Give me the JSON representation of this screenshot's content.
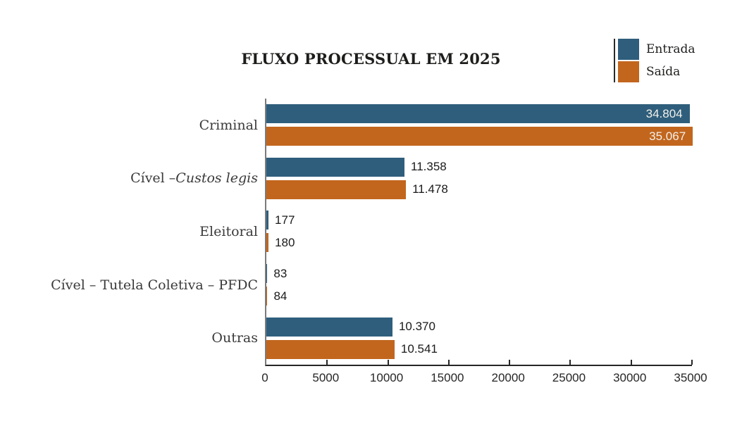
{
  "title": "FLUXO PROCESSUAL EM 2025",
  "legend": {
    "position": "top-right",
    "entries": [
      {
        "label": "Entrada",
        "color": "#2f5e7c"
      },
      {
        "label": "Saída",
        "color": "#c2661e"
      }
    ]
  },
  "chart_data": {
    "type": "bar",
    "orientation": "horizontal",
    "title": "FLUXO PROCESSUAL EM 2025",
    "xlabel": "",
    "ylabel": "",
    "xlim": [
      0,
      35000
    ],
    "grid": false,
    "legend_position": "top-right",
    "categories": [
      "Criminal",
      "Cível – Custos legis",
      "Eleitoral",
      "Cível – Tutela Coletiva – PFDC",
      "Outras"
    ],
    "category_segments": [
      [
        {
          "text": "Criminal",
          "italic": false
        }
      ],
      [
        {
          "text": "Cível – ",
          "italic": false
        },
        {
          "text": "Custos legis",
          "italic": true
        }
      ],
      [
        {
          "text": "Eleitoral",
          "italic": false
        }
      ],
      [
        {
          "text": "Cível – Tutela Coletiva – PFDC",
          "italic": false
        }
      ],
      [
        {
          "text": "Outras",
          "italic": false
        }
      ]
    ],
    "series": [
      {
        "name": "Entrada",
        "color": "#2f5e7c",
        "values": [
          34804,
          11358,
          177,
          83,
          10370
        ],
        "value_labels": [
          "34.804",
          "11.358",
          "177",
          "83",
          "10.370"
        ]
      },
      {
        "name": "Saída",
        "color": "#c2661e",
        "values": [
          35067,
          11478,
          180,
          84,
          10541
        ],
        "value_labels": [
          "35.067",
          "11.478",
          "180",
          "84",
          "10.541"
        ]
      }
    ],
    "x_ticks": [
      0,
      5000,
      10000,
      15000,
      20000,
      25000,
      30000,
      35000
    ],
    "x_tick_labels": [
      "0",
      "5000",
      "10000",
      "15000",
      "20000",
      "25000",
      "30000",
      "35000"
    ]
  }
}
